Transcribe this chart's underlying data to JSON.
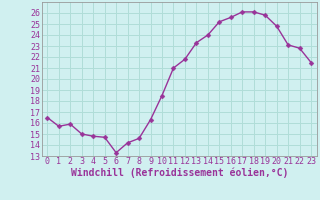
{
  "x": [
    0,
    1,
    2,
    3,
    4,
    5,
    6,
    7,
    8,
    9,
    10,
    11,
    12,
    13,
    14,
    15,
    16,
    17,
    18,
    19,
    20,
    21,
    22,
    23
  ],
  "y": [
    16.5,
    15.7,
    15.9,
    15.0,
    14.8,
    14.7,
    13.3,
    14.2,
    14.6,
    16.3,
    18.5,
    21.0,
    21.8,
    23.3,
    24.0,
    25.2,
    25.6,
    26.1,
    26.1,
    25.8,
    24.8,
    23.1,
    22.8,
    21.5
  ],
  "xlabel": "Windchill (Refroidissement éolien,°C)",
  "line_color": "#993399",
  "marker_color": "#993399",
  "bg_color": "#d0f0f0",
  "grid_color": "#b0ddd8",
  "tick_label_color": "#993399",
  "axis_label_color": "#993399",
  "ylim": [
    13,
    27
  ],
  "yticks": [
    13,
    14,
    15,
    16,
    17,
    18,
    19,
    20,
    21,
    22,
    23,
    24,
    25,
    26
  ],
  "xlim": [
    -0.5,
    23.5
  ],
  "xticks": [
    0,
    1,
    2,
    3,
    4,
    5,
    6,
    7,
    8,
    9,
    10,
    11,
    12,
    13,
    14,
    15,
    16,
    17,
    18,
    19,
    20,
    21,
    22,
    23
  ],
  "xlabel_fontsize": 7,
  "tick_fontsize": 6,
  "marker_size": 2.5,
  "line_width": 1.0
}
